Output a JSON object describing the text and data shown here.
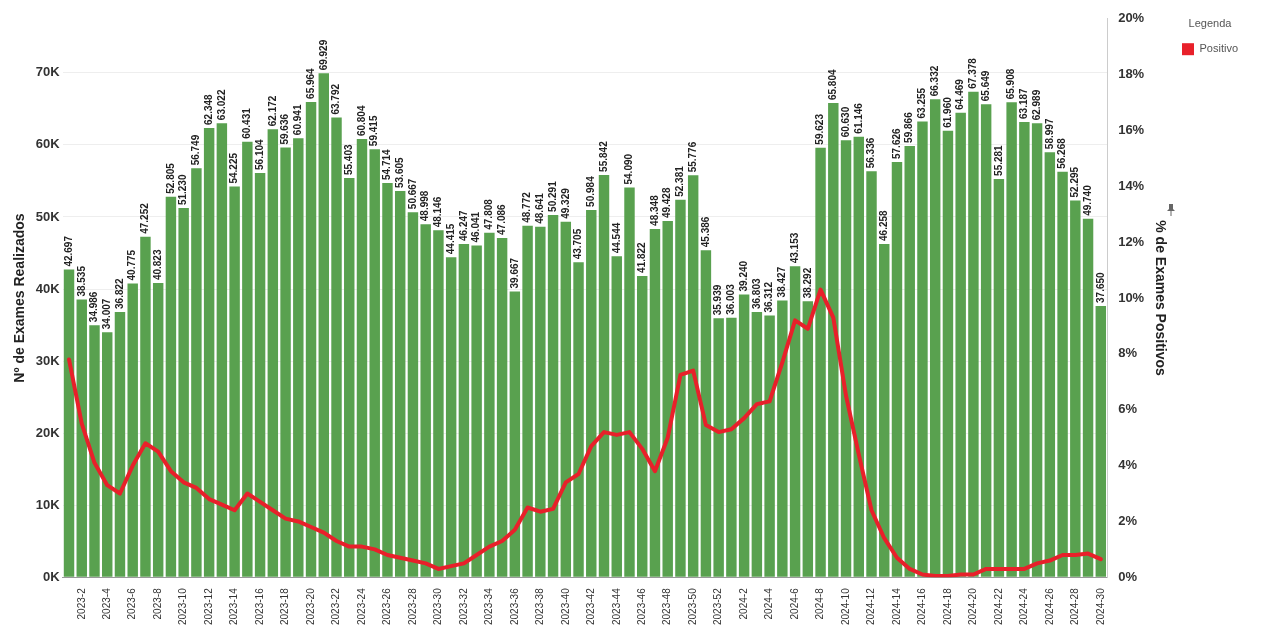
{
  "chart_data": {
    "type": "bar",
    "ylabel": "Nº de Exames Realizados",
    "y2label": "% de Exames Positivos",
    "legend_title": "Legenda",
    "legend": "top right",
    "grid": "y",
    "categories": [
      null,
      "2023-2",
      null,
      "2023-4",
      null,
      "2023-6",
      null,
      "2023-8",
      null,
      "2023-10",
      null,
      "2023-12",
      null,
      "2023-14",
      null,
      "2023-16",
      null,
      "2023-18",
      null,
      "2023-20",
      null,
      "2023-22",
      null,
      "2023-24",
      null,
      "2023-26",
      null,
      "2023-28",
      null,
      "2023-30",
      null,
      "2023-32",
      null,
      "2023-34",
      null,
      "2023-36",
      null,
      "2023-38",
      null,
      "2023-40",
      null,
      "2023-42",
      null,
      "2023-44",
      null,
      "2023-46",
      null,
      "2023-48",
      null,
      "2023-50",
      null,
      "2023-52",
      null,
      "2024-2",
      null,
      "2024-4",
      null,
      "2024-6",
      null,
      "2024-8",
      null,
      "2024-10",
      null,
      "2024-12",
      null,
      "2024-14",
      null,
      "2024-16",
      null,
      "2024-18",
      null,
      "2024-20",
      null,
      "2024-22",
      null,
      "2024-24",
      null,
      "2024-26",
      null,
      "2024-28",
      null,
      "2024-30"
    ],
    "ylim": [
      0,
      77500
    ],
    "yticks": [
      {
        "value": 0,
        "label": "0K"
      },
      {
        "value": 10000,
        "label": "10K"
      },
      {
        "value": 20000,
        "label": "20K"
      },
      {
        "value": 30000,
        "label": "30K"
      },
      {
        "value": 40000,
        "label": "40K"
      },
      {
        "value": 50000,
        "label": "50K"
      },
      {
        "value": 60000,
        "label": "60K"
      },
      {
        "value": 70000,
        "label": "70K"
      }
    ],
    "y2lim": [
      0,
      20
    ],
    "y2ticks": [
      {
        "value": 0,
        "label": "0%"
      },
      {
        "value": 2,
        "label": "2%"
      },
      {
        "value": 4,
        "label": "4%"
      },
      {
        "value": 6,
        "label": "6%"
      },
      {
        "value": 8,
        "label": "8%"
      },
      {
        "value": 10,
        "label": "10%"
      },
      {
        "value": 12,
        "label": "12%"
      },
      {
        "value": 14,
        "label": "14%"
      },
      {
        "value": 16,
        "label": "16%"
      },
      {
        "value": 18,
        "label": "18%"
      },
      {
        "value": 20,
        "label": "20%"
      }
    ],
    "series": [
      {
        "color": "#59a14f",
        "values": [
          42697,
          38535,
          34986,
          34007,
          36822,
          40775,
          47252,
          40823,
          52805,
          51230,
          56749,
          62348,
          63022,
          54225,
          60431,
          56104,
          62172,
          59636,
          60941,
          65964,
          69929,
          63792,
          55403,
          60804,
          59415,
          54714,
          53605,
          50667,
          48998,
          48146,
          44415,
          46247,
          46041,
          47808,
          47086,
          39667,
          48772,
          48641,
          50291,
          49329,
          43705,
          50984,
          55842,
          44544,
          54090,
          41822,
          48348,
          49428,
          52381,
          55776,
          45386,
          35939,
          36003,
          39240,
          36803,
          36312,
          38427,
          43153,
          38292,
          59623,
          65804,
          60630,
          61146,
          56336,
          46258,
          57626,
          59866,
          63255,
          66332,
          61960,
          64469,
          67378,
          65649,
          55281,
          65908,
          63187,
          62989,
          58997,
          56268,
          52295,
          49740,
          37650
        ],
        "value_labels": [
          "42.697",
          "38.535",
          "34.986",
          "34.007",
          "36.822",
          "40.775",
          "47.252",
          "40.823",
          "52.805",
          "51.230",
          "56.749",
          "62.348",
          "63.022",
          "54.225",
          "60.431",
          "56.104",
          "62.172",
          "59.636",
          "60.941",
          "65.964",
          "69.929",
          "63.792",
          "55.403",
          "60.804",
          "59.415",
          "54.714",
          "53.605",
          "50.667",
          "48.998",
          "48.146",
          "44.415",
          "46.247",
          "46.041",
          "47.808",
          "47.086",
          "39.667",
          "48.772",
          "48.641",
          "50.291",
          "49.329",
          "43.705",
          "50.984",
          "55.842",
          "44.544",
          "54.090",
          "41.822",
          "48.348",
          "49.428",
          "52.381",
          "55.776",
          "45.386",
          "35.939",
          "36.003",
          "39.240",
          "36.803",
          "36.312",
          "38.427",
          "43.153",
          "38.292",
          "59.623",
          "65.804",
          "60.630",
          "61.146",
          "56.336",
          "46.258",
          "57.626",
          "59.866",
          "63.255",
          "66.332",
          "61.960",
          "64.469",
          "67.378",
          "65.649",
          "55.281",
          "65.908",
          "63.187",
          "62.989",
          "58.997",
          "56.268",
          "52.295",
          "49.740",
          "37.650"
        ]
      },
      {
        "type": "line",
        "name": "Positivo",
        "color": "#e8202a",
        "axis": "y2",
        "marker": "none",
        "line_style": "solid",
        "values": [
          7.8,
          5.5,
          4.1,
          3.3,
          3.0,
          4.0,
          4.8,
          4.5,
          3.8,
          3.4,
          3.2,
          2.8,
          2.6,
          2.4,
          3.0,
          2.7,
          2.4,
          2.1,
          2.0,
          1.8,
          1.6,
          1.3,
          1.1,
          1.1,
          1.0,
          0.8,
          0.7,
          0.6,
          0.5,
          0.3,
          0.4,
          0.5,
          0.8,
          1.1,
          1.3,
          1.7,
          2.5,
          2.35,
          2.45,
          3.4,
          3.7,
          4.7,
          5.2,
          5.1,
          5.2,
          4.6,
          3.8,
          5.0,
          7.25,
          7.4,
          5.45,
          5.2,
          5.3,
          5.7,
          6.2,
          6.3,
          7.7,
          9.2,
          8.9,
          10.3,
          9.3,
          6.5,
          4.4,
          2.4,
          1.4,
          0.7,
          0.3,
          0.1,
          0.05,
          0.05,
          0.1,
          0.1,
          0.3,
          0.3,
          0.3,
          0.3,
          0.5,
          0.6,
          0.8,
          0.8,
          0.85,
          0.65
        ]
      }
    ]
  }
}
